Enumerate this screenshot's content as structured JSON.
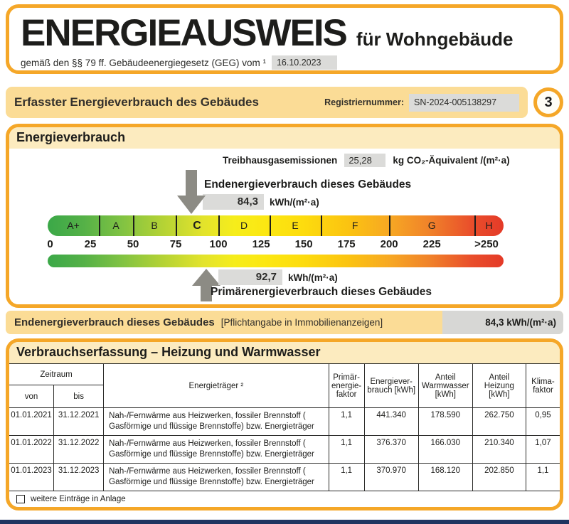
{
  "colors": {
    "accent_orange": "#F5A728",
    "banner_bg": "#FBDC96",
    "section_header_bg": "#FCEBBF",
    "field_gray": "#DBDBD9",
    "value_box_gray": "#D7D7D5",
    "arrow_gray": "#8C8B84",
    "scale_green": "#3BA848",
    "scale_yellow": "#FCE712",
    "scale_red": "#E43A28",
    "footer_navy": "#1F3460"
  },
  "header": {
    "title": "ENERGIEAUSWEIS",
    "title_suffix": "für Wohngebäude",
    "law_text": "gemäß den §§ 79 ff. Gebäudeenergiegesetz (GEG) vom ¹",
    "date_value": "16.10.2023"
  },
  "banner_top": {
    "title": "Erfasster Energieverbrauch des Gebäudes",
    "reg_label": "Registriernummer:",
    "reg_value": "SN-2024-005138297",
    "page_number": "3"
  },
  "energy_section": {
    "title": "Energieverbrauch",
    "emissions": {
      "label": "Treibhausgasemissionen",
      "value": "25,28",
      "unit": "kg CO₂-Äquivalent /(m²·a)"
    },
    "endenergie": {
      "label": "Endenergieverbrauch dieses Gebäudes",
      "value": "84,3",
      "value_num": 84.3,
      "unit": "kWh/(m²·a)"
    },
    "primaerenergie": {
      "label": "Primärenergieverbrauch dieses Gebäudes",
      "value": "92,7",
      "value_num": 92.7,
      "unit": "kWh/(m²·a)"
    },
    "scale": {
      "max_value": 267,
      "classes": [
        {
          "label": "A+",
          "from": 0,
          "to": 30
        },
        {
          "label": "A",
          "from": 30,
          "to": 50
        },
        {
          "label": "B",
          "from": 50,
          "to": 75
        },
        {
          "label": "C",
          "from": 75,
          "to": 100,
          "current": true
        },
        {
          "label": "D",
          "from": 100,
          "to": 130
        },
        {
          "label": "E",
          "from": 130,
          "to": 160
        },
        {
          "label": "F",
          "from": 160,
          "to": 200
        },
        {
          "label": "G",
          "from": 200,
          "to": 250
        },
        {
          "label": "H",
          "from": 250,
          "to": 267
        }
      ],
      "tick_labels": [
        {
          "label": "0",
          "value": 1.5
        },
        {
          "label": "25",
          "value": 25
        },
        {
          "label": "50",
          "value": 50
        },
        {
          "label": "75",
          "value": 75
        },
        {
          "label": "100",
          "value": 100
        },
        {
          "label": "125",
          "value": 125
        },
        {
          "label": "150",
          "value": 150
        },
        {
          "label": "175",
          "value": 175
        },
        {
          "label": "200",
          "value": 200
        },
        {
          "label": "225",
          "value": 225
        },
        {
          "label": ">250",
          "value": 257
        }
      ]
    }
  },
  "banner_end": {
    "title": "Endenergieverbrauch dieses Gebäudes",
    "note": "[Pflichtangabe in Immobilienanzeigen]",
    "value": "84,3 kWh/(m²·a)"
  },
  "table": {
    "title": "Verbrauchserfassung – Heizung und Warmwasser",
    "headers": {
      "zeitraum": "Zeitraum",
      "von": "von",
      "bis": "bis",
      "energietraeger": "Energieträger ²",
      "pef": "Primär-energie-faktor",
      "verbrauch": "Energiever-brauch [kWh]",
      "warmwasser": "Anteil Warmwasser [kWh]",
      "heizung": "Anteil Heizung [kWh]",
      "klima": "Klima-faktor"
    },
    "rows": [
      {
        "von": "01.01.2021",
        "bis": "31.12.2021",
        "energietraeger": "Nah-/Fernwärme aus Heizwerken, fossiler Brennstoff ( Gasförmige und flüssige Brennstoffe) bzw. Energieträger",
        "pef": "1,1",
        "verbrauch": "441.340",
        "warmwasser": "178.590",
        "heizung": "262.750",
        "klima": "0,95"
      },
      {
        "von": "01.01.2022",
        "bis": "31.12.2022",
        "energietraeger": "Nah-/Fernwärme aus Heizwerken, fossiler Brennstoff ( Gasförmige und flüssige Brennstoffe) bzw. Energieträger",
        "pef": "1,1",
        "verbrauch": "376.370",
        "warmwasser": "166.030",
        "heizung": "210.340",
        "klima": "1,07"
      },
      {
        "von": "01.01.2023",
        "bis": "31.12.2023",
        "energietraeger": "Nah-/Fernwärme aus Heizwerken, fossiler Brennstoff ( Gasförmige und flüssige Brennstoffe) bzw. Energieträger",
        "pef": "1,1",
        "verbrauch": "370.970",
        "warmwasser": "168.120",
        "heizung": "202.850",
        "klima": "1,1"
      }
    ],
    "footer_checkbox_label": "weitere Einträge in Anlage"
  }
}
